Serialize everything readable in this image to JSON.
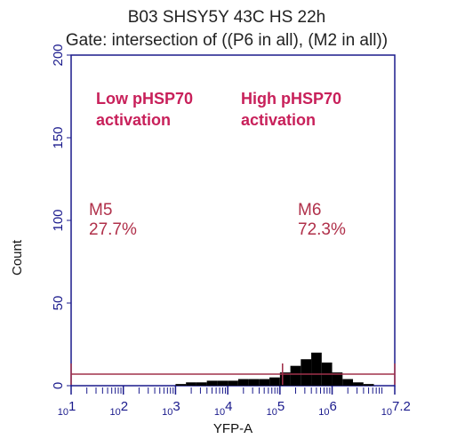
{
  "chart_data": {
    "type": "histogram",
    "title": "B03 SHSY5Y 43C HS 22h",
    "subtitle": "Gate: intersection of ((P6 in all), (M2 in all))",
    "x_label": "YFP-A",
    "y_label": "Count",
    "xtick_base": "10",
    "xlim": [
      1,
      7.2
    ],
    "xticks": [
      1,
      2,
      3,
      4,
      5,
      6,
      7.2
    ],
    "ylim": [
      0,
      200
    ],
    "yticks": [
      0,
      50,
      100,
      150,
      200
    ],
    "bins": [
      3.0,
      3.2,
      3.4,
      3.6,
      3.8,
      4.0,
      4.2,
      4.4,
      4.6,
      4.8,
      5.0,
      5.2,
      5.4,
      5.6,
      5.8,
      6.0,
      6.2,
      6.4,
      6.6,
      6.8
    ],
    "counts": [
      1,
      2,
      2,
      3,
      3,
      3,
      4,
      4,
      4,
      5,
      8,
      12,
      16,
      20,
      14,
      8,
      4,
      2,
      1
    ],
    "color": "#000000",
    "markers": [
      {
        "name": "M5",
        "label": "27.7%",
        "range": [
          1,
          5.05
        ]
      },
      {
        "name": "M6",
        "label": "72.3%",
        "range": [
          5.05,
          7.2
        ]
      }
    ],
    "annotations": [
      {
        "lines": [
          "Low pHSP70",
          "activation"
        ]
      },
      {
        "lines": [
          "High pHSP70",
          "activation"
        ]
      }
    ]
  }
}
